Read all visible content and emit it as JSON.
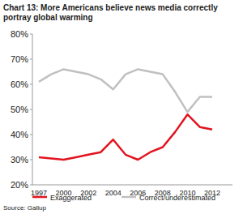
{
  "chart_data": {
    "type": "line",
    "title": "Chart 13: More Americans believe news media correctly portray global warming",
    "source": "Source: Gallup",
    "categories": [
      "1997",
      null,
      "2000",
      null,
      "2002",
      null,
      "2004",
      null,
      "2006",
      null,
      "2008",
      null,
      "2010",
      null,
      "2012"
    ],
    "series": [
      {
        "name": "Exaggerated",
        "color": "#e2141e",
        "values": [
          31,
          30.5,
          30,
          31,
          32,
          33,
          38,
          32,
          30,
          33,
          35,
          41,
          48,
          43,
          42
        ]
      },
      {
        "name": "Correct/underestimated",
        "color": "#c0c0c0",
        "values": [
          61,
          64,
          66,
          65,
          64,
          62,
          58,
          64,
          66,
          65,
          64,
          57,
          49,
          55,
          55
        ]
      }
    ],
    "ylim": [
      20,
      80
    ],
    "yticks": [
      {
        "value": 20,
        "label": "20%"
      },
      {
        "value": 30,
        "label": "30%"
      },
      {
        "value": 40,
        "label": "40%"
      },
      {
        "value": 50,
        "label": "50%"
      },
      {
        "value": 60,
        "label": "60%"
      },
      {
        "value": 70,
        "label": "70%"
      },
      {
        "value": 80,
        "label": "80%"
      }
    ],
    "grid": false,
    "legend": "bottom"
  }
}
